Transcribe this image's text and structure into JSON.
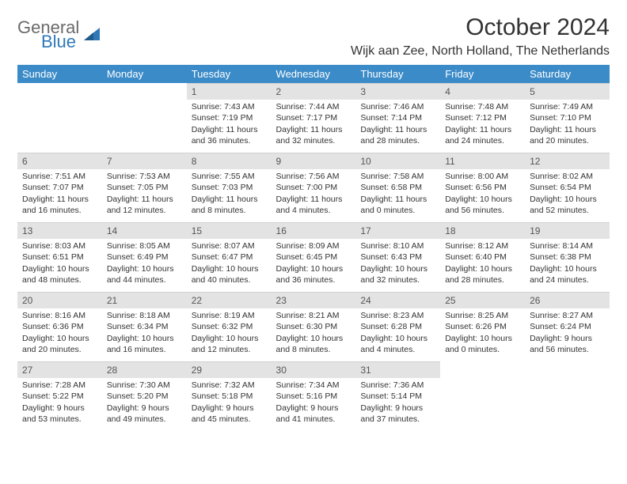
{
  "logo": {
    "text1": "General",
    "text2": "Blue"
  },
  "title": "October 2024",
  "location": "Wijk aan Zee, North Holland, The Netherlands",
  "colors": {
    "header_bg": "#3b8bc8",
    "header_fg": "#ffffff",
    "daynum_bg": "#e3e3e3",
    "daynum_fg": "#555555",
    "body_fg": "#333333",
    "logo_gray": "#6a6a6a",
    "logo_blue": "#2f78b8",
    "page_bg": "#ffffff"
  },
  "typography": {
    "title_size": 30,
    "location_size": 16,
    "header_size": 13,
    "daynum_size": 12,
    "cell_size": 10.5,
    "font_family": "Arial"
  },
  "day_headers": [
    "Sunday",
    "Monday",
    "Tuesday",
    "Wednesday",
    "Thursday",
    "Friday",
    "Saturday"
  ],
  "weeks": [
    [
      {
        "num": "",
        "sunrise": "",
        "sunset": "",
        "daylight": ""
      },
      {
        "num": "",
        "sunrise": "",
        "sunset": "",
        "daylight": ""
      },
      {
        "num": "1",
        "sunrise": "Sunrise: 7:43 AM",
        "sunset": "Sunset: 7:19 PM",
        "daylight": "Daylight: 11 hours and 36 minutes."
      },
      {
        "num": "2",
        "sunrise": "Sunrise: 7:44 AM",
        "sunset": "Sunset: 7:17 PM",
        "daylight": "Daylight: 11 hours and 32 minutes."
      },
      {
        "num": "3",
        "sunrise": "Sunrise: 7:46 AM",
        "sunset": "Sunset: 7:14 PM",
        "daylight": "Daylight: 11 hours and 28 minutes."
      },
      {
        "num": "4",
        "sunrise": "Sunrise: 7:48 AM",
        "sunset": "Sunset: 7:12 PM",
        "daylight": "Daylight: 11 hours and 24 minutes."
      },
      {
        "num": "5",
        "sunrise": "Sunrise: 7:49 AM",
        "sunset": "Sunset: 7:10 PM",
        "daylight": "Daylight: 11 hours and 20 minutes."
      }
    ],
    [
      {
        "num": "6",
        "sunrise": "Sunrise: 7:51 AM",
        "sunset": "Sunset: 7:07 PM",
        "daylight": "Daylight: 11 hours and 16 minutes."
      },
      {
        "num": "7",
        "sunrise": "Sunrise: 7:53 AM",
        "sunset": "Sunset: 7:05 PM",
        "daylight": "Daylight: 11 hours and 12 minutes."
      },
      {
        "num": "8",
        "sunrise": "Sunrise: 7:55 AM",
        "sunset": "Sunset: 7:03 PM",
        "daylight": "Daylight: 11 hours and 8 minutes."
      },
      {
        "num": "9",
        "sunrise": "Sunrise: 7:56 AM",
        "sunset": "Sunset: 7:00 PM",
        "daylight": "Daylight: 11 hours and 4 minutes."
      },
      {
        "num": "10",
        "sunrise": "Sunrise: 7:58 AM",
        "sunset": "Sunset: 6:58 PM",
        "daylight": "Daylight: 11 hours and 0 minutes."
      },
      {
        "num": "11",
        "sunrise": "Sunrise: 8:00 AM",
        "sunset": "Sunset: 6:56 PM",
        "daylight": "Daylight: 10 hours and 56 minutes."
      },
      {
        "num": "12",
        "sunrise": "Sunrise: 8:02 AM",
        "sunset": "Sunset: 6:54 PM",
        "daylight": "Daylight: 10 hours and 52 minutes."
      }
    ],
    [
      {
        "num": "13",
        "sunrise": "Sunrise: 8:03 AM",
        "sunset": "Sunset: 6:51 PM",
        "daylight": "Daylight: 10 hours and 48 minutes."
      },
      {
        "num": "14",
        "sunrise": "Sunrise: 8:05 AM",
        "sunset": "Sunset: 6:49 PM",
        "daylight": "Daylight: 10 hours and 44 minutes."
      },
      {
        "num": "15",
        "sunrise": "Sunrise: 8:07 AM",
        "sunset": "Sunset: 6:47 PM",
        "daylight": "Daylight: 10 hours and 40 minutes."
      },
      {
        "num": "16",
        "sunrise": "Sunrise: 8:09 AM",
        "sunset": "Sunset: 6:45 PM",
        "daylight": "Daylight: 10 hours and 36 minutes."
      },
      {
        "num": "17",
        "sunrise": "Sunrise: 8:10 AM",
        "sunset": "Sunset: 6:43 PM",
        "daylight": "Daylight: 10 hours and 32 minutes."
      },
      {
        "num": "18",
        "sunrise": "Sunrise: 8:12 AM",
        "sunset": "Sunset: 6:40 PM",
        "daylight": "Daylight: 10 hours and 28 minutes."
      },
      {
        "num": "19",
        "sunrise": "Sunrise: 8:14 AM",
        "sunset": "Sunset: 6:38 PM",
        "daylight": "Daylight: 10 hours and 24 minutes."
      }
    ],
    [
      {
        "num": "20",
        "sunrise": "Sunrise: 8:16 AM",
        "sunset": "Sunset: 6:36 PM",
        "daylight": "Daylight: 10 hours and 20 minutes."
      },
      {
        "num": "21",
        "sunrise": "Sunrise: 8:18 AM",
        "sunset": "Sunset: 6:34 PM",
        "daylight": "Daylight: 10 hours and 16 minutes."
      },
      {
        "num": "22",
        "sunrise": "Sunrise: 8:19 AM",
        "sunset": "Sunset: 6:32 PM",
        "daylight": "Daylight: 10 hours and 12 minutes."
      },
      {
        "num": "23",
        "sunrise": "Sunrise: 8:21 AM",
        "sunset": "Sunset: 6:30 PM",
        "daylight": "Daylight: 10 hours and 8 minutes."
      },
      {
        "num": "24",
        "sunrise": "Sunrise: 8:23 AM",
        "sunset": "Sunset: 6:28 PM",
        "daylight": "Daylight: 10 hours and 4 minutes."
      },
      {
        "num": "25",
        "sunrise": "Sunrise: 8:25 AM",
        "sunset": "Sunset: 6:26 PM",
        "daylight": "Daylight: 10 hours and 0 minutes."
      },
      {
        "num": "26",
        "sunrise": "Sunrise: 8:27 AM",
        "sunset": "Sunset: 6:24 PM",
        "daylight": "Daylight: 9 hours and 56 minutes."
      }
    ],
    [
      {
        "num": "27",
        "sunrise": "Sunrise: 7:28 AM",
        "sunset": "Sunset: 5:22 PM",
        "daylight": "Daylight: 9 hours and 53 minutes."
      },
      {
        "num": "28",
        "sunrise": "Sunrise: 7:30 AM",
        "sunset": "Sunset: 5:20 PM",
        "daylight": "Daylight: 9 hours and 49 minutes."
      },
      {
        "num": "29",
        "sunrise": "Sunrise: 7:32 AM",
        "sunset": "Sunset: 5:18 PM",
        "daylight": "Daylight: 9 hours and 45 minutes."
      },
      {
        "num": "30",
        "sunrise": "Sunrise: 7:34 AM",
        "sunset": "Sunset: 5:16 PM",
        "daylight": "Daylight: 9 hours and 41 minutes."
      },
      {
        "num": "31",
        "sunrise": "Sunrise: 7:36 AM",
        "sunset": "Sunset: 5:14 PM",
        "daylight": "Daylight: 9 hours and 37 minutes."
      },
      {
        "num": "",
        "sunrise": "",
        "sunset": "",
        "daylight": ""
      },
      {
        "num": "",
        "sunrise": "",
        "sunset": "",
        "daylight": ""
      }
    ]
  ]
}
